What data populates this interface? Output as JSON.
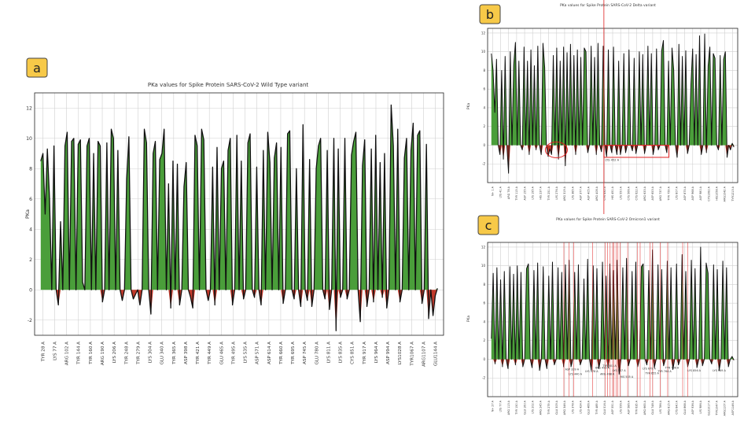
{
  "panels": [
    {
      "id": "a",
      "label": "a"
    },
    {
      "id": "b",
      "label": "b"
    },
    {
      "id": "c",
      "label": "c"
    }
  ],
  "colors": {
    "positive": "#4a9e3a",
    "negative": "#c0392b",
    "line": "#111111",
    "badge": "#f7c948",
    "highlight": "#e02020"
  },
  "chart_data": [
    {
      "id": "a",
      "type": "area",
      "title": "PKa values for Spike Protein SARS-CoV-2 Wild Type variant",
      "ylabel": "PKa",
      "ylim": [
        -3,
        13
      ],
      "yticks": [
        -2,
        0,
        2,
        4,
        6,
        8,
        10,
        12
      ],
      "grid": true,
      "xticklabels": [
        "TYR 28 A",
        "LYS 77 A",
        "ARG 102 A",
        "TYR 144 A",
        "TYR 160 A",
        "ARG 190 A",
        "LYS 206 A",
        "TYR 248 A",
        "TYR 279 A",
        "LYS 304 A",
        "GLU 340 A",
        "TYR 365 A",
        "ASP 398 A",
        "TYR 421 A",
        "TYR 449 A",
        "GLU 465 A",
        "TYR 495 A",
        "LYS 535 A",
        "ASP 571 A",
        "ASP 614 A",
        "TYR 660 A",
        "TYR 695 A",
        "ASP 745 A",
        "GLU 780 A",
        "LYS 811 A",
        "LYS 835 A",
        "CYS 851 A",
        "TYR 917 A",
        "LYS 964 A",
        "ASP 994 A",
        "LYS1028 A",
        "TYR1067 A",
        "ARG1107 A",
        "GLU1144 A"
      ],
      "values": [
        8.5,
        9.0,
        5.0,
        9.3,
        6.0,
        0.0,
        9.5,
        0.0,
        -1.0,
        4.5,
        0.0,
        9.5,
        10.4,
        0.0,
        9.8,
        10.0,
        0.0,
        9.6,
        9.9,
        0.5,
        0.0,
        9.5,
        10.0,
        0.0,
        9.0,
        0.0,
        9.8,
        9.5,
        -0.8,
        0.0,
        9.7,
        0.0,
        10.6,
        10.0,
        0.0,
        9.2,
        0.0,
        -0.7,
        0.0,
        7.3,
        10.1,
        0.0,
        -0.6,
        -0.3,
        0.0,
        -1.0,
        0.0,
        10.6,
        9.7,
        0.0,
        -1.6,
        9.0,
        9.8,
        0.0,
        8.6,
        9.0,
        10.6,
        0.0,
        7.0,
        -1.2,
        8.5,
        0.0,
        8.3,
        -1.0,
        0.0,
        6.8,
        8.4,
        0.0,
        -0.5,
        -1.2,
        10.2,
        9.5,
        0.0,
        10.6,
        9.9,
        0.0,
        -0.7,
        0.0,
        8.1,
        -1.0,
        9.4,
        0.0,
        8.0,
        8.5,
        0.0,
        9.2,
        10.0,
        -1.0,
        0.0,
        10.2,
        0.0,
        8.5,
        -0.6,
        0.0,
        9.7,
        10.3,
        0.0,
        -0.5,
        8.1,
        0.0,
        -1.0,
        9.2,
        0.0,
        10.4,
        8.4,
        0.0,
        8.7,
        9.7,
        0.0,
        9.4,
        -0.9,
        0.0,
        10.3,
        10.5,
        0.0,
        -0.6,
        8.0,
        0.0,
        -1.1,
        10.9,
        0.0,
        -0.7,
        8.6,
        -1.1,
        0.0,
        8.0,
        9.5,
        10.0,
        0.0,
        -0.6,
        9.2,
        -1.3,
        0.0,
        10.0,
        -2.7,
        9.3,
        -0.5,
        0.0,
        10.0,
        -0.6,
        0.0,
        8.9,
        9.8,
        10.4,
        0.0,
        -2.1,
        8.2,
        9.9,
        -1.1,
        0.0,
        9.3,
        -0.8,
        10.2,
        0.0,
        8.4,
        -0.5,
        9.0,
        -1.2,
        0.0,
        12.2,
        9.5,
        0.0,
        10.6,
        -0.8,
        0.0,
        8.7,
        10.0,
        0.0,
        9.2,
        11.0,
        0.0,
        10.2,
        10.5,
        -0.9,
        0.0,
        9.6,
        -1.9,
        0.0,
        -1.7,
        -0.4,
        0.1
      ]
    },
    {
      "id": "b",
      "type": "area",
      "title": "PKa values for Spike Protein SARS-CoV-2 Delta variant",
      "ylabel": "PKa",
      "ylim": [
        -4,
        12.5
      ],
      "yticks": [
        -2,
        0,
        2,
        4,
        6,
        8,
        10,
        12
      ],
      "grid": true,
      "xticklabels": [
        "N+ 1 A",
        "LYS 41 A",
        "ARG 78 A",
        "TYR 113 A",
        "ASP 155 A",
        "LYS 195 A",
        "HIS 237 A",
        "TYR 251 A",
        "LYS 276 A",
        "ARG 319 A",
        "LYS 385 A",
        "ASP 377 A",
        "ASP 405 A",
        "ARG 408 A",
        "CYS 432 A",
        "HIS 451 A",
        "LYS 550 A",
        "CYS 566 A",
        "CYS 622 A",
        "ARG 633 A",
        "ASP 653 A",
        "ARG 737 A",
        "TYR 759 A",
        "LYS 807 A",
        "ASP 875 A",
        "ASP 968 A",
        "ASP 980 A",
        "CYS1082 A",
        "HIS1058 A",
        "ARG1042 A",
        "TYR1213 A"
      ],
      "annotations": [
        "LYS 452 A"
      ],
      "values": [
        9.8,
        8.0,
        3.5,
        9.2,
        0.0,
        -1.0,
        8.0,
        -1.5,
        9.5,
        0.0,
        -3.0,
        10.0,
        0.0,
        8.6,
        11.0,
        0.0,
        9.0,
        0.0,
        -0.5,
        10.5,
        0.0,
        9.0,
        -1.0,
        10.2,
        0.0,
        8.5,
        -0.5,
        10.6,
        0.0,
        -1.0,
        10.9,
        8.3,
        0.0,
        -1.2,
        -0.4,
        -1.0,
        9.6,
        0.0,
        10.4,
        -1.5,
        9.0,
        0.0,
        10.5,
        -2.2,
        9.9,
        0.0,
        10.8,
        0.0,
        9.6,
        -1.0,
        10.2,
        0.0,
        9.4,
        0.0,
        10.4,
        10.0,
        -0.8,
        0.0,
        10.6,
        0.0,
        9.4,
        -1.0,
        10.9,
        0.0,
        -0.7,
        10.6,
        0.0,
        -1.2,
        10.2,
        0.0,
        -0.8,
        10.5,
        0.0,
        -1.0,
        9.0,
        -1.0,
        0.0,
        9.8,
        -0.8,
        0.0,
        10.2,
        0.0,
        -0.6,
        9.3,
        -0.9,
        0.0,
        10.0,
        0.0,
        9.7,
        -0.9,
        0.0,
        10.6,
        0.0,
        9.8,
        -1.0,
        0.0,
        10.3,
        -0.5,
        0.0,
        10.1,
        11.2,
        0.0,
        -0.8,
        9.0,
        0.0,
        10.4,
        8.0,
        0.0,
        -1.3,
        10.8,
        0.0,
        9.5,
        0.0,
        10.1,
        -0.9,
        0.0,
        6.5,
        10.3,
        0.0,
        9.7,
        0.0,
        11.7,
        -1.0,
        0.0,
        11.9,
        -0.8,
        8.5,
        10.5,
        0.0,
        9.8,
        9.3,
        0.0,
        -0.5,
        9.6,
        0.0,
        9.2,
        10.0,
        -1.3,
        0.0,
        -0.5,
        0.2,
        -0.2
      ]
    },
    {
      "id": "c",
      "type": "area",
      "title": "PKa values for Spike Protein SARS-CoV-2 Omicron1 variant",
      "ylabel": "PKa",
      "ylim": [
        -4,
        12.5
      ],
      "yticks": [
        -2,
        0,
        2,
        4,
        6,
        8,
        10,
        12
      ],
      "grid": true,
      "xticklabels": [
        "N+ 27 A",
        "LYS 77 A",
        "ARG 113 A",
        "TYR 150 A",
        "GLU 160 A",
        "LYS 202 A",
        "ARG 245 A",
        "TYR 279 A",
        "GLU 309 A",
        "ARG 346 A",
        "LYS 378 A",
        "LYS 424 A",
        "GLU 466 A",
        "TYR 489 A",
        "GLU 516 A",
        "ASP 551 A",
        "LYS 556 A",
        "ASP 586 A",
        "TYR 635 A",
        "ARG 665 A",
        "GLU 748 A",
        "LYS 786 A",
        "ARG 815 A",
        "CYS 840 A",
        "GLU 868 A",
        "ASP 936 A",
        "LYS 986 A",
        "GLU1017 A",
        "TYR1047 A",
        "ARG1107 A",
        "ASP1146 A"
      ],
      "annotations": [
        "ASP 339 A",
        "LYS 440 A",
        "LYS 478 A",
        "ARG 493 A",
        "ARG 498 A",
        "TYR 501 A",
        "LYS 547 A",
        "HIS 505 A",
        "LYS 679 A",
        "TYR 655 A",
        "TYR 764 A",
        "TYR 796 A",
        "LYS 856 A",
        "LYS 969 A"
      ],
      "values": [
        2.2,
        9.2,
        -0.5,
        9.8,
        0.0,
        8.5,
        -0.8,
        9.4,
        0.0,
        -1.0,
        9.9,
        0.0,
        9.1,
        -0.6,
        10.0,
        0.0,
        9.3,
        -0.8,
        0.0,
        9.7,
        10.2,
        0.0,
        -0.9,
        9.5,
        0.0,
        10.3,
        -1.2,
        0.0,
        9.9,
        0.0,
        -1.0,
        8.9,
        0.0,
        10.4,
        -0.6,
        0.0,
        9.8,
        0.0,
        9.3,
        -0.8,
        10.1,
        0.0,
        10.6,
        -0.8,
        0.0,
        9.3,
        0.0,
        10.1,
        -0.6,
        0.0,
        8.6,
        0.0,
        10.7,
        0.0,
        -1.2,
        10.0,
        0.0,
        9.7,
        -1.0,
        0.0,
        10.4,
        0.0,
        8.9,
        -0.9,
        10.2,
        0.0,
        9.5,
        0.0,
        10.6,
        -1.6,
        0.0,
        9.8,
        0.0,
        10.8,
        -0.7,
        0.0,
        9.4,
        0.0,
        10.4,
        -0.8,
        0.0,
        9.9,
        10.2,
        0.0,
        -0.6,
        9.5,
        0.0,
        11.7,
        -0.9,
        0.0,
        10.1,
        0.0,
        9.6,
        -0.7,
        0.0,
        10.5,
        0.0,
        9.8,
        -1.1,
        0.0,
        10.2,
        -0.6,
        0.0,
        11.2,
        0.0,
        9.4,
        -0.8,
        0.0,
        10.6,
        0.0,
        9.7,
        -0.9,
        0.0,
        12.0,
        -0.7,
        0.0,
        10.3,
        9.2,
        0.0,
        -0.5,
        10.1,
        0.0,
        9.6,
        -1.2,
        0.0,
        10.5,
        0.0,
        9.8,
        -0.8,
        0.0,
        0.3,
        -0.1
      ]
    }
  ]
}
